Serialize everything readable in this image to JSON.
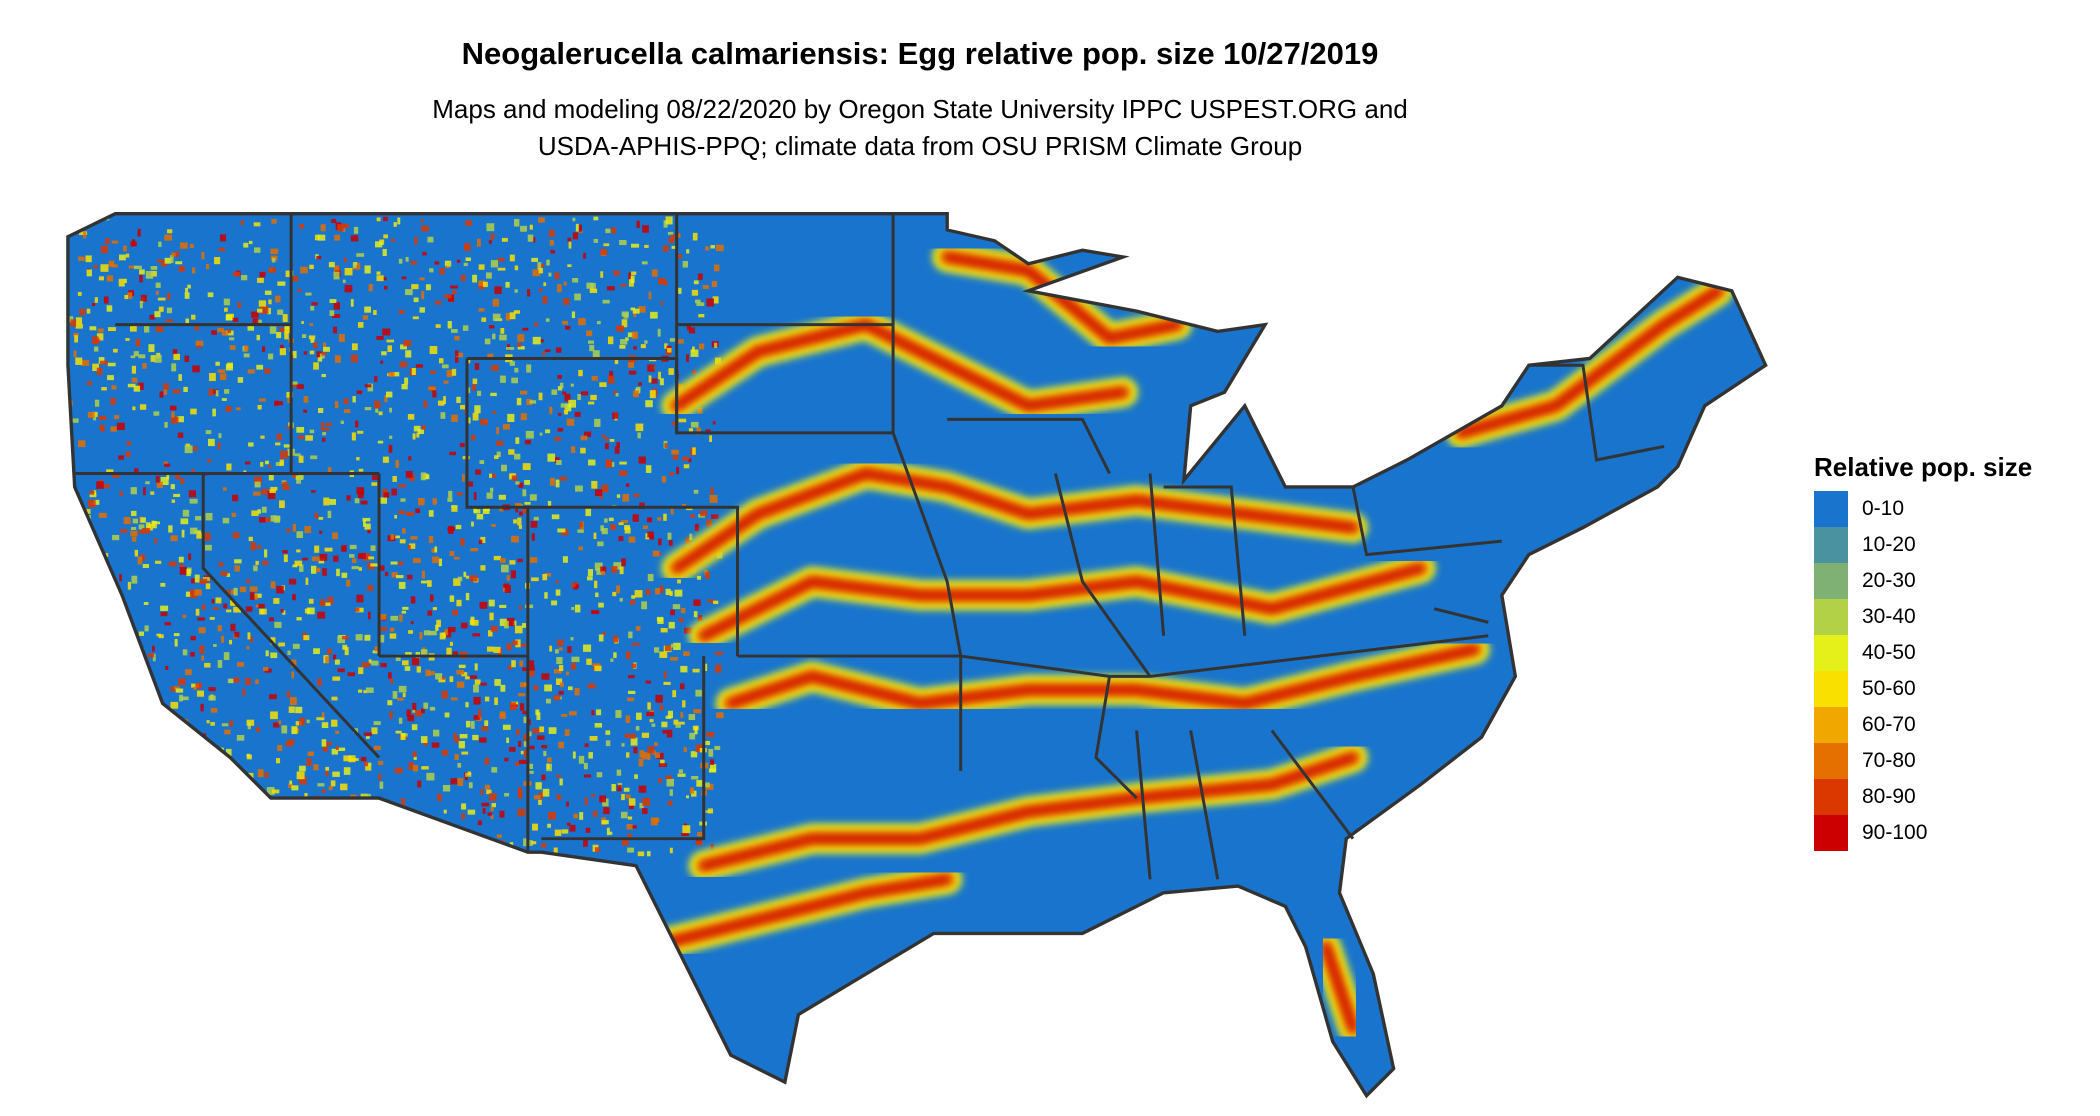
{
  "title": "Neogalerucella calmariensis: Egg relative pop. size 10/27/2019",
  "subtitle_lines": [
    "Maps and modeling 08/22/2020 by Oregon State University IPPC USPEST.ORG and",
    "USDA-APHIS-PPQ; climate data from OSU PRISM Climate Group"
  ],
  "chart_data": {
    "type": "heatmap",
    "title": "Neogalerucella calmariensis: Egg relative pop. size 10/27/2019",
    "region": "Contiguous United States",
    "legend": {
      "title": "Relative pop. size",
      "placement": "right",
      "items": [
        {
          "label": "0-10",
          "color": "#1874CD"
        },
        {
          "label": "10-20",
          "color": "#4A92A0"
        },
        {
          "label": "20-30",
          "color": "#7FB174"
        },
        {
          "label": "30-40",
          "color": "#B2D147"
        },
        {
          "label": "40-50",
          "color": "#E5EF1A"
        },
        {
          "label": "50-60",
          "color": "#F9E000"
        },
        {
          "label": "60-70",
          "color": "#F0A800"
        },
        {
          "label": "70-80",
          "color": "#E57000"
        },
        {
          "label": "80-90",
          "color": "#DB3800"
        },
        {
          "label": "90-100",
          "color": "#CD0000"
        }
      ]
    },
    "border_color": "#333333"
  }
}
